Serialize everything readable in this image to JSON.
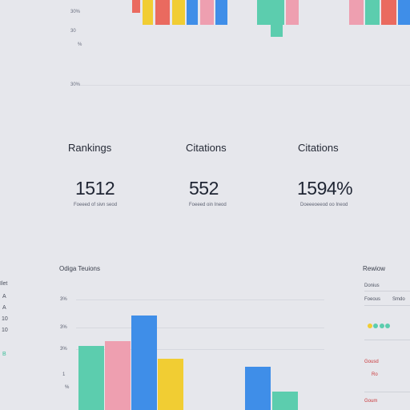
{
  "top_chart": {
    "y_ticks": [
      "30%",
      "30",
      "%",
      "30%"
    ],
    "bar_colors": {
      "teal": "#5ccdae",
      "pink": "#ee9fb0",
      "red": "#ea6a5f",
      "yellow": "#f1cd33",
      "blue": "#3f8ee8"
    }
  },
  "stats": [
    {
      "label": "Rankings",
      "value": "1512",
      "caption": "Foeeed of sivn seod"
    },
    {
      "label": "Citations",
      "value": "552",
      "caption": "Foeeed oin Ineod"
    },
    {
      "label": "Citations",
      "value": "1594%",
      "caption": "Doeeeoeeod oo Ineod"
    }
  ],
  "bottom_chart": {
    "title": "Odiga Teuions",
    "y_ticks": [
      "3%",
      "3%",
      "3%",
      "1",
      "%"
    ],
    "left_marks": [
      "Ilet",
      "A",
      "A",
      "10",
      "10",
      "B"
    ]
  },
  "chart_data": {
    "type": "bar",
    "title": "Odiga Teuions",
    "series": [
      {
        "color": "#5ccdae",
        "values": [
          80,
          null,
          23
        ]
      },
      {
        "color": "#ee9fb0",
        "values": [
          86,
          null,
          null
        ]
      },
      {
        "color": "#3f8ee8",
        "values": [
          118,
          54,
          null
        ]
      },
      {
        "color": "#f1cd33",
        "values": [
          64,
          null,
          null
        ]
      }
    ],
    "grid": true,
    "legend": "none"
  },
  "review": {
    "title": "Rewiow",
    "rows": [
      "Donius",
      "Foeous",
      "Smdo"
    ],
    "alerts": [
      "Gousd",
      "Ro",
      "Goum"
    ],
    "dot_colors": [
      "#f1cd33",
      "#5ccdae",
      "#5ccdae"
    ]
  }
}
